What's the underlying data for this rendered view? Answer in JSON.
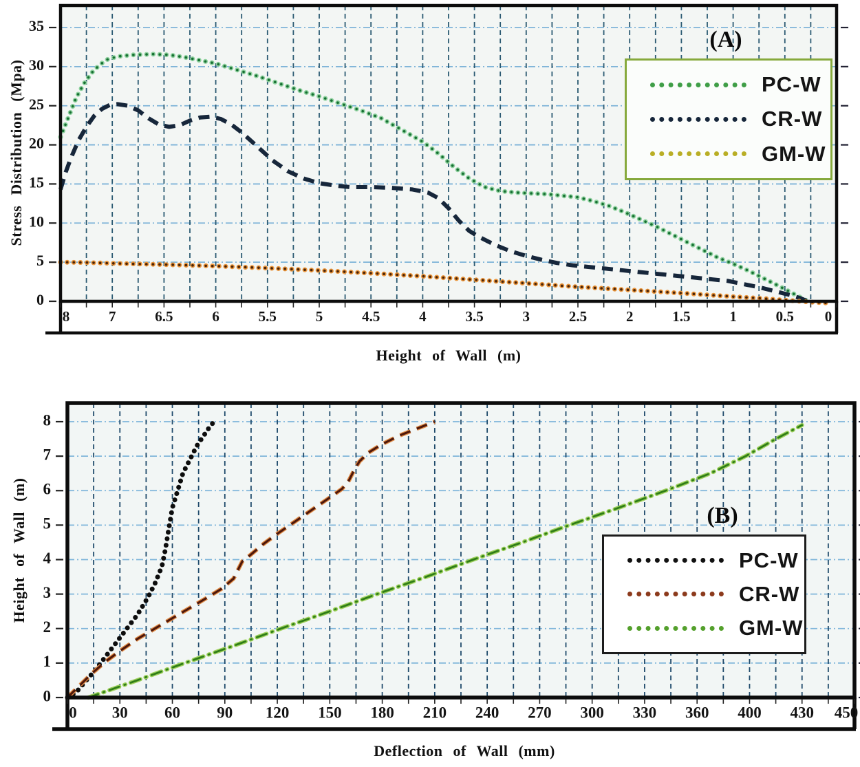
{
  "chart_data": [
    {
      "id": "A",
      "type": "line",
      "corner_label": "(A)",
      "xlabel": "Height  of Wall  (m)",
      "ylabel": "Stress Distribution  (Mpa)",
      "x_tick_labels": [
        "8",
        "7",
        "6.5",
        "6",
        "5.5",
        "5",
        "4.5",
        "4",
        "3.5",
        "3",
        "2.5",
        "2",
        "1.5",
        "1",
        "0.5",
        "0"
      ],
      "x_slot_values": [
        8,
        7,
        6.5,
        6,
        5.5,
        5,
        4.5,
        4,
        3.5,
        3,
        2.5,
        2,
        1.5,
        1,
        0.5,
        0
      ],
      "x_axis_reversed": true,
      "y_tick_labels": [
        "0",
        "5",
        "10",
        "15",
        "20",
        "25",
        "30",
        "35"
      ],
      "y_tick_values": [
        0,
        5,
        10,
        15,
        20,
        25,
        30,
        35
      ],
      "ylim": [
        0,
        35
      ],
      "grid": "both",
      "colors": {
        "plot_bg": "#f3f6f4",
        "v_grid": "#2b5a72",
        "h_grid": "#7db3d8",
        "frame": "#0c0c0c",
        "legend_border": "#86a93c"
      },
      "legend_position": "upper right",
      "series": [
        {
          "name": "PC-W",
          "style": "dotted",
          "color": "#8ed19e",
          "color2": "#176f33",
          "legend_color": "#3f9e47",
          "points": [
            [
              8,
              21
            ],
            [
              7.85,
              23.5
            ],
            [
              7.7,
              26
            ],
            [
              7.55,
              27.8
            ],
            [
              7.4,
              29.2
            ],
            [
              7.25,
              30.2
            ],
            [
              7.1,
              30.9
            ],
            [
              6.95,
              31.3
            ],
            [
              6.8,
              31.5
            ],
            [
              6.6,
              31.6
            ],
            [
              6.45,
              31.5
            ],
            [
              6.3,
              31.2
            ],
            [
              6.15,
              30.8
            ],
            [
              6,
              30.4
            ],
            [
              5.8,
              29.6
            ],
            [
              5.6,
              28.8
            ],
            [
              5.4,
              27.9
            ],
            [
              5.2,
              27
            ],
            [
              5,
              26.2
            ],
            [
              4.8,
              25.3
            ],
            [
              4.6,
              24.4
            ],
            [
              4.4,
              23.4
            ],
            [
              4.2,
              21.9
            ],
            [
              4,
              20.4
            ],
            [
              3.85,
              18.9
            ],
            [
              3.7,
              17.2
            ],
            [
              3.55,
              15.7
            ],
            [
              3.4,
              14.6
            ],
            [
              3.25,
              14.1
            ],
            [
              3.1,
              13.9
            ],
            [
              2.95,
              13.8
            ],
            [
              2.8,
              13.7
            ],
            [
              2.65,
              13.5
            ],
            [
              2.5,
              13.3
            ],
            [
              2.35,
              12.8
            ],
            [
              2.2,
              12.2
            ],
            [
              2.05,
              11.4
            ],
            [
              1.9,
              10.5
            ],
            [
              1.75,
              9.6
            ],
            [
              1.6,
              8.6
            ],
            [
              1.45,
              7.6
            ],
            [
              1.3,
              6.6
            ],
            [
              1.15,
              5.6
            ],
            [
              1,
              4.8
            ],
            [
              0.85,
              3.9
            ],
            [
              0.7,
              2.9
            ],
            [
              0.55,
              1.9
            ],
            [
              0.45,
              1.2
            ],
            [
              0.35,
              0.5
            ],
            [
              0.28,
              0
            ]
          ]
        },
        {
          "name": "CR-W",
          "style": "dashed",
          "color": "#16263a",
          "legend_color": "#16263a",
          "points": [
            [
              8,
              14.3
            ],
            [
              7.9,
              16.5
            ],
            [
              7.8,
              18.3
            ],
            [
              7.65,
              20.6
            ],
            [
              7.5,
              22.3
            ],
            [
              7.35,
              23.7
            ],
            [
              7.2,
              24.6
            ],
            [
              7.05,
              25.1
            ],
            [
              6.95,
              25.2
            ],
            [
              6.85,
              25
            ],
            [
              6.75,
              24.4
            ],
            [
              6.65,
              23.4
            ],
            [
              6.55,
              22.6
            ],
            [
              6.45,
              22.3
            ],
            [
              6.35,
              22.5
            ],
            [
              6.25,
              23.1
            ],
            [
              6.15,
              23.5
            ],
            [
              6.05,
              23.6
            ],
            [
              5.95,
              23.3
            ],
            [
              5.85,
              22.6
            ],
            [
              5.75,
              21.6
            ],
            [
              5.6,
              19.8
            ],
            [
              5.45,
              18
            ],
            [
              5.3,
              16.6
            ],
            [
              5.15,
              15.7
            ],
            [
              5,
              15.1
            ],
            [
              4.85,
              14.8
            ],
            [
              4.7,
              14.6
            ],
            [
              4.5,
              14.6
            ],
            [
              4.3,
              14.5
            ],
            [
              4.1,
              14.3
            ],
            [
              3.95,
              13.9
            ],
            [
              3.85,
              13.2
            ],
            [
              3.75,
              11.9
            ],
            [
              3.65,
              10.3
            ],
            [
              3.55,
              9
            ],
            [
              3.45,
              8.2
            ],
            [
              3.3,
              7.2
            ],
            [
              3.15,
              6.4
            ],
            [
              3,
              5.8
            ],
            [
              2.85,
              5.3
            ],
            [
              2.7,
              4.9
            ],
            [
              2.55,
              4.6
            ],
            [
              2.4,
              4.4
            ],
            [
              2.25,
              4.2
            ],
            [
              2.1,
              4
            ],
            [
              1.95,
              3.8
            ],
            [
              1.8,
              3.6
            ],
            [
              1.65,
              3.4
            ],
            [
              1.5,
              3.2
            ],
            [
              1.35,
              3
            ],
            [
              1.2,
              2.8
            ],
            [
              1.05,
              2.6
            ],
            [
              0.9,
              2.2
            ],
            [
              0.75,
              1.8
            ],
            [
              0.6,
              1.3
            ],
            [
              0.45,
              0.8
            ],
            [
              0.35,
              0.4
            ],
            [
              0.28,
              0
            ]
          ]
        },
        {
          "name": "GM-W",
          "style": "dotted",
          "color": "#ea953b",
          "color2": "#4a2408",
          "legend_color": "#b9ae25",
          "points": [
            [
              8,
              5
            ],
            [
              7.5,
              4.95
            ],
            [
              7,
              4.85
            ],
            [
              6.5,
              4.7
            ],
            [
              6,
              4.5
            ],
            [
              5.5,
              4.25
            ],
            [
              5,
              3.95
            ],
            [
              4.5,
              3.6
            ],
            [
              4,
              3.2
            ],
            [
              3.5,
              2.75
            ],
            [
              3,
              2.3
            ],
            [
              2.5,
              1.85
            ],
            [
              2,
              1.45
            ],
            [
              1.5,
              1.05
            ],
            [
              1,
              0.6
            ],
            [
              0.7,
              0.35
            ],
            [
              0.45,
              0.1
            ],
            [
              0.25,
              -0.1
            ],
            [
              0.05,
              -0.25
            ]
          ]
        }
      ]
    },
    {
      "id": "B",
      "type": "line",
      "corner_label": "(B)",
      "xlabel": "Deflection  of Wall  (mm)",
      "ylabel": "Height  of Wall  (m)",
      "x_tick_labels": [
        "0",
        "30",
        "60",
        "90",
        "120",
        "150",
        "180",
        "210",
        "240",
        "270",
        "300",
        "330",
        "360",
        "400",
        "430",
        "450"
      ],
      "x_slot_values": [
        0,
        30,
        60,
        90,
        120,
        150,
        180,
        210,
        240,
        270,
        300,
        330,
        360,
        400,
        430,
        450
      ],
      "x_axis_reversed": false,
      "y_tick_labels": [
        "0",
        "1",
        "2",
        "3",
        "4",
        "5",
        "6",
        "7",
        "8"
      ],
      "y_tick_values": [
        0,
        1,
        2,
        3,
        4,
        5,
        6,
        7,
        8
      ],
      "ylim": [
        0,
        8
      ],
      "grid": "both",
      "colors": {
        "plot_bg": "#f2f6f5",
        "v_grid": "#1f4a6b",
        "h_grid": "#7fb5da",
        "frame": "#0c0c0c",
        "legend_border": "#1c1c1c"
      },
      "legend_position": "right",
      "series": [
        {
          "name": "PC-W",
          "style": "dotted",
          "color": "#0d0d0d",
          "legend_color": "#111111",
          "points": [
            [
              0,
              0
            ],
            [
              5,
              0.15
            ],
            [
              10,
              0.45
            ],
            [
              16,
              0.8
            ],
            [
              22,
              1.2
            ],
            [
              28,
              1.6
            ],
            [
              34,
              2
            ],
            [
              40,
              2.4
            ],
            [
              46,
              2.9
            ],
            [
              50,
              3.3
            ],
            [
              54,
              3.8
            ],
            [
              56,
              4.3
            ],
            [
              58,
              4.9
            ],
            [
              60,
              5.5
            ],
            [
              63,
              6
            ],
            [
              66,
              6.5
            ],
            [
              70,
              6.9
            ],
            [
              74,
              7.3
            ],
            [
              78,
              7.6
            ],
            [
              82,
              7.9
            ],
            [
              84,
              8
            ]
          ]
        },
        {
          "name": "CR-W",
          "style": "dashed",
          "color": "#e08a44",
          "color2": "#4f180a",
          "legend_color": "#8c3a1c",
          "points": [
            [
              0,
              0
            ],
            [
              6,
              0.3
            ],
            [
              14,
              0.7
            ],
            [
              22,
              1.05
            ],
            [
              30,
              1.35
            ],
            [
              40,
              1.7
            ],
            [
              50,
              2
            ],
            [
              60,
              2.3
            ],
            [
              70,
              2.6
            ],
            [
              80,
              2.9
            ],
            [
              88,
              3.15
            ],
            [
              95,
              3.45
            ],
            [
              98,
              3.75
            ],
            [
              100,
              3.95
            ],
            [
              105,
              4.15
            ],
            [
              112,
              4.45
            ],
            [
              120,
              4.75
            ],
            [
              130,
              5.1
            ],
            [
              140,
              5.45
            ],
            [
              150,
              5.8
            ],
            [
              157,
              6.05
            ],
            [
              161,
              6.3
            ],
            [
              164,
              6.6
            ],
            [
              167,
              6.85
            ],
            [
              172,
              7.1
            ],
            [
              180,
              7.35
            ],
            [
              190,
              7.6
            ],
            [
              200,
              7.8
            ],
            [
              210,
              8
            ]
          ]
        },
        {
          "name": "GM-W",
          "style": "dashdot",
          "color": "#9ccf5a",
          "color2": "#2f7d17",
          "legend_color": "#54a02c",
          "points": [
            [
              12,
              0
            ],
            [
              40,
              0.5
            ],
            [
              67,
              1
            ],
            [
              95,
              1.5
            ],
            [
              122,
              2
            ],
            [
              150,
              2.5
            ],
            [
              177,
              3
            ],
            [
              205,
              3.5
            ],
            [
              232,
              4
            ],
            [
              260,
              4.5
            ],
            [
              287,
              5
            ],
            [
              315,
              5.5
            ],
            [
              342,
              6
            ],
            [
              370,
              6.5
            ],
            [
              397,
              7
            ],
            [
              415,
              7.5
            ],
            [
              430,
              7.9
            ]
          ]
        }
      ]
    }
  ]
}
